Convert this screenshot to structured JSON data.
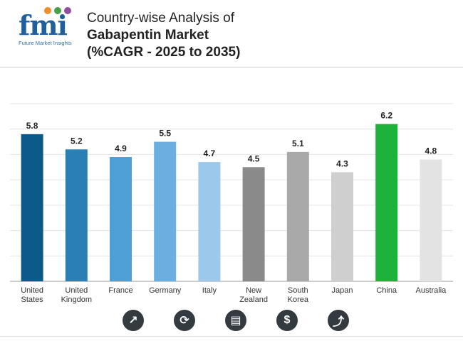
{
  "header": {
    "logo_text": "fmi",
    "logo_tagline": "Future Market Insights",
    "title_line1": "Country-wise Analysis of",
    "title_line2": "Gabapentin Market",
    "title_line3": "(%CAGR - 2025 to 2035)"
  },
  "brand_colors": {
    "logo": "#1f5f9c",
    "dot_orange": "#f28c28",
    "dot_green": "#45a047",
    "dot_purple": "#8e4fa0"
  },
  "chart_data": {
    "type": "bar",
    "title": "Country-wise Analysis of Gabapentin Market (%CAGR - 2025 to 2035)",
    "categories": [
      [
        "United",
        "States"
      ],
      [
        "United",
        "Kingdom"
      ],
      [
        "France"
      ],
      [
        "Germany"
      ],
      [
        "Italy"
      ],
      [
        "New",
        "Zealand"
      ],
      [
        "South",
        "Korea"
      ],
      [
        "Japan"
      ],
      [
        "China"
      ],
      [
        "Australia"
      ]
    ],
    "values": [
      5.8,
      5.2,
      4.9,
      5.5,
      4.7,
      4.5,
      5.1,
      4.3,
      6.2,
      4.8
    ],
    "value_labels": [
      "5.8",
      "5.2",
      "4.9",
      "5.5",
      "4.7",
      "4.5",
      "5.1",
      "4.3",
      "6.2",
      "4.8"
    ],
    "colors": [
      "#0c5a8a",
      "#2a7fb5",
      "#4e9fd6",
      "#6aafe0",
      "#9cc8ec",
      "#8a8a8a",
      "#a8a8a8",
      "#cfcfcf",
      "#1db33a",
      "#e3e3e3"
    ],
    "ylim": [
      0,
      7
    ],
    "grid": true,
    "xlabel": "",
    "ylabel": ""
  },
  "footer_icons": [
    {
      "name": "growth-chart-icon",
      "glyph": "↗"
    },
    {
      "name": "trend-analysis-icon",
      "glyph": "⟳"
    },
    {
      "name": "report-document-icon",
      "glyph": "▤"
    },
    {
      "name": "dollar-icon",
      "glyph": "$"
    },
    {
      "name": "market-trend-icon",
      "glyph": "⤴"
    }
  ]
}
